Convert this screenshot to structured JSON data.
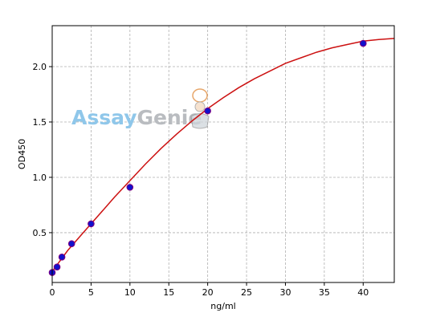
{
  "watermark": {
    "part1": "Assay",
    "part2": "Genie"
  },
  "chart_data": {
    "type": "scatter",
    "title": "",
    "xlabel": "ng/ml",
    "ylabel": "OD450",
    "xlim": [
      0,
      44
    ],
    "ylim": [
      0.05,
      2.37
    ],
    "xticks": [
      0,
      5,
      10,
      15,
      20,
      25,
      30,
      35,
      40
    ],
    "yticks": [
      0.5,
      1.0,
      1.5,
      2.0
    ],
    "ytick_labels": [
      "0.5",
      "1.0",
      "1.5",
      "2.0"
    ],
    "grid": true,
    "points": {
      "x": [
        0,
        0.625,
        1.25,
        2.5,
        5,
        10,
        20,
        40
      ],
      "y": [
        0.14,
        0.19,
        0.28,
        0.4,
        0.58,
        0.91,
        1.6,
        2.21
      ],
      "color": "#1111cc",
      "edge_color": "#800080"
    },
    "fit_curve": {
      "color": "#cc1111",
      "x": [
        0,
        2,
        4,
        6,
        8,
        10,
        12,
        14,
        16,
        18,
        20,
        22,
        24,
        26,
        28,
        30,
        32,
        34,
        36,
        38,
        40,
        42,
        44
      ],
      "y": [
        0.15,
        0.34,
        0.5,
        0.66,
        0.82,
        0.97,
        1.12,
        1.26,
        1.39,
        1.51,
        1.62,
        1.72,
        1.81,
        1.89,
        1.96,
        2.03,
        2.08,
        2.13,
        2.17,
        2.2,
        2.23,
        2.245,
        2.255
      ]
    }
  }
}
